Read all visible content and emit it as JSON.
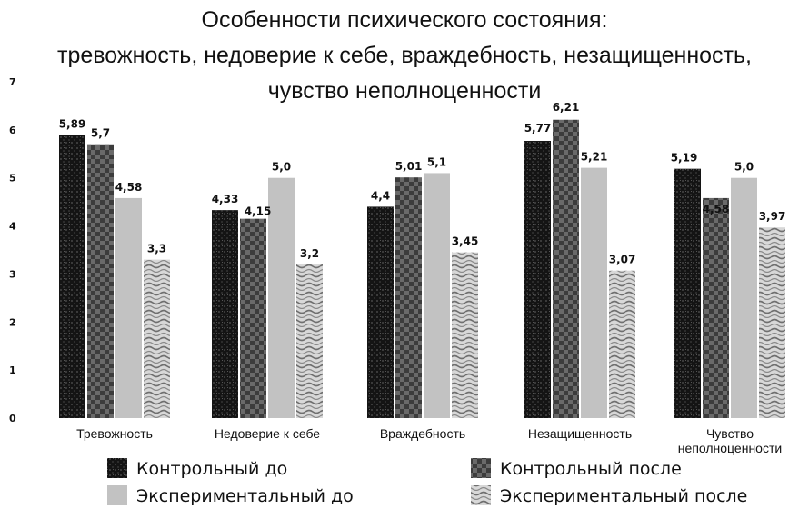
{
  "chart_data": {
    "type": "bar",
    "title_lines": [
      "Особенности психического состояния:",
      "тревожность, недоверие к себе, враждебность, незащищенность,",
      "чувство неполноценности"
    ],
    "categories": [
      [
        "Тревожность"
      ],
      [
        "Недоверие к себе"
      ],
      [
        "Враждебность"
      ],
      [
        "Незащищенность"
      ],
      [
        "Чувство",
        "неполноценности"
      ]
    ],
    "ylim": [
      0,
      7
    ],
    "yticks": [
      0,
      1,
      2,
      3,
      4,
      5,
      6,
      7
    ],
    "grid": false,
    "legend_position": "bottom",
    "series": [
      {
        "name": "Контрольный до",
        "values": [
          5.89,
          4.33,
          4.4,
          5.77,
          5.19
        ],
        "labels": [
          "5,89",
          "4,33",
          "4,4",
          "5,77",
          "5,19"
        ],
        "pattern": "dark-texture",
        "color": "#161616"
      },
      {
        "name": "Контрольный после",
        "values": [
          5.7,
          4.15,
          5.01,
          6.21,
          4.58
        ],
        "labels": [
          "5,7",
          "4,15",
          "5,01",
          "6,21",
          "4,58"
        ],
        "pattern": "checker",
        "color": "#5a5a5a"
      },
      {
        "name": "Экспериментальный до",
        "values": [
          4.58,
          5.0,
          5.1,
          5.21,
          5.0
        ],
        "labels": [
          "4,58",
          "5,0",
          "5,1",
          "5,21",
          "5,0"
        ],
        "pattern": "solid-light",
        "color": "#bdbdbd"
      },
      {
        "name": "Экспериментальный после",
        "values": [
          3.3,
          3.2,
          3.45,
          3.07,
          3.97
        ],
        "labels": [
          "3,3",
          "3,2",
          "3,45",
          "3,07",
          "3,97"
        ],
        "pattern": "marble",
        "color": "#a8a8a8"
      }
    ]
  }
}
